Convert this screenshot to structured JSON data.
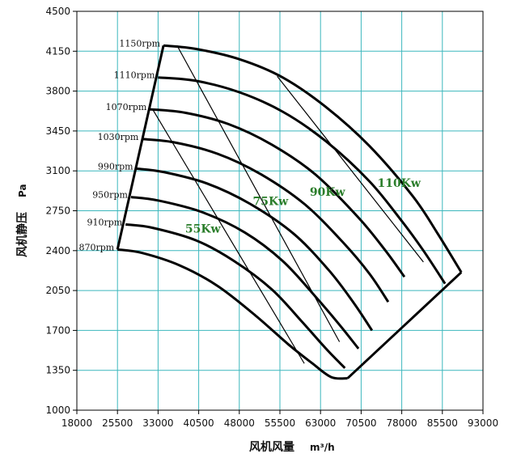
{
  "chart_data": {
    "type": "line",
    "title": "",
    "xlabel": "风机风量",
    "xunit": "m³/h",
    "ylabel": "风机静压",
    "yunit": "Pa",
    "xlim": [
      18000,
      93000
    ],
    "ylim": [
      1000,
      4500
    ],
    "grid": true,
    "x_ticks": [
      18000,
      25500,
      33000,
      40500,
      48000,
      55500,
      63000,
      70500,
      78000,
      85500,
      93000
    ],
    "y_ticks": [
      1000,
      1350,
      1700,
      2050,
      2400,
      2750,
      3100,
      3450,
      3800,
      4150,
      4500
    ],
    "series": [
      {
        "name": "1150rpm",
        "x": [
          34000,
          40000,
          48000,
          56000,
          64000,
          72000,
          80000,
          84500,
          89000
        ],
        "y": [
          4200,
          4170,
          4080,
          3920,
          3660,
          3320,
          2880,
          2560,
          2210
        ]
      },
      {
        "name": "1110rpm",
        "x": [
          33000,
          40000,
          48000,
          56000,
          64000,
          72000,
          78000,
          82000,
          86000
        ],
        "y": [
          3920,
          3890,
          3790,
          3620,
          3360,
          3010,
          2660,
          2400,
          2110
        ]
      },
      {
        "name": "1070rpm",
        "x": [
          31500,
          38000,
          46000,
          54000,
          62000,
          70000,
          75000,
          78500
        ],
        "y": [
          3640,
          3610,
          3510,
          3330,
          3070,
          2690,
          2400,
          2170
        ]
      },
      {
        "name": "1030rpm",
        "x": [
          30000,
          36000,
          44000,
          52000,
          60000,
          67000,
          72000,
          75500
        ],
        "y": [
          3380,
          3350,
          3250,
          3070,
          2810,
          2480,
          2200,
          1950
        ]
      },
      {
        "name": "990rpm",
        "x": [
          29000,
          34000,
          42000,
          50000,
          58000,
          64500,
          69000,
          72500
        ],
        "y": [
          3120,
          3090,
          2990,
          2810,
          2550,
          2230,
          1950,
          1700
        ]
      },
      {
        "name": "950rpm",
        "x": [
          28000,
          33000,
          41000,
          49000,
          56000,
          62000,
          66500,
          70000
        ],
        "y": [
          2870,
          2840,
          2740,
          2560,
          2310,
          2000,
          1750,
          1540
        ]
      },
      {
        "name": "910rpm",
        "x": [
          27000,
          32000,
          40000,
          47000,
          54000,
          59500,
          64000,
          67500
        ],
        "y": [
          2630,
          2600,
          2490,
          2310,
          2060,
          1780,
          1540,
          1370
        ]
      },
      {
        "name": "870rpm",
        "x": [
          25500,
          30000,
          37000,
          44000,
          51000,
          57000,
          61500,
          65000,
          68000
        ],
        "y": [
          2410,
          2380,
          2270,
          2090,
          1830,
          1580,
          1410,
          1290,
          1280
        ]
      }
    ],
    "power_lines": [
      {
        "name": "55Kw",
        "x": [
          32000,
          60000
        ],
        "y": [
          3640,
          1410
        ]
      },
      {
        "name": "75Kw",
        "x": [
          36500,
          66500
        ],
        "y": [
          4200,
          1600
        ]
      },
      {
        "name": "90Kw",
        "x": [
          55000,
          82000
        ],
        "y": [
          3930,
          2300
        ]
      }
    ],
    "power_labels": [
      {
        "text": "55Kw",
        "x": 38000,
        "y": 2560
      },
      {
        "text": "75Kw",
        "x": 50500,
        "y": 2800
      },
      {
        "text": "90Kw",
        "x": 61000,
        "y": 2880
      },
      {
        "text": "110Kw",
        "x": 73500,
        "y": 2960
      }
    ],
    "boundary": {
      "left": {
        "x": [
          25500,
          34000
        ],
        "y": [
          2410,
          4200
        ]
      },
      "right": {
        "x": [
          68000,
          89000
        ],
        "y": [
          1280,
          2210
        ]
      }
    }
  }
}
